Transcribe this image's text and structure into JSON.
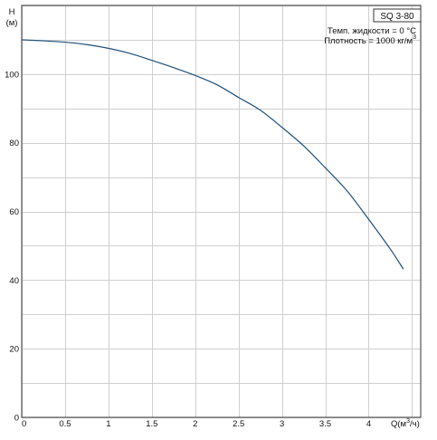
{
  "chart_data": {
    "type": "line",
    "model_label": "SQ 3-80",
    "y_axis_label": {
      "line1": "H",
      "line2": "(м)"
    },
    "x_axis_label": {
      "prefix": "Q(м",
      "sup": "3",
      "suffix": "/ч)"
    },
    "conditions": [
      {
        "text": "Темп. жидкости = 0 °C",
        "sup": ""
      },
      {
        "text": "Плотность = 1000 кг/м",
        "sup": "3"
      }
    ],
    "xlim": [
      0,
      4.6
    ],
    "ylim": [
      0,
      120
    ],
    "x_ticks": [
      0,
      0.5,
      1,
      1.5,
      2,
      2.5,
      3,
      3.5,
      4
    ],
    "x_tick_labels": [
      "0",
      "0.5",
      "1",
      "1.5",
      "2",
      "2.5",
      "3",
      "3.5",
      "4"
    ],
    "y_ticks": [
      0,
      20,
      40,
      60,
      80,
      100
    ],
    "y_tick_labels": [
      "0",
      "20",
      "40",
      "60",
      "80",
      "100"
    ],
    "grid": true,
    "line_color": "#1f4f7a",
    "series": [
      {
        "x": [
          0,
          0.25,
          0.5,
          0.75,
          1,
          1.25,
          1.5,
          1.75,
          2,
          2.25,
          2.5,
          2.75,
          3,
          3.25,
          3.5,
          3.75,
          4,
          4.25,
          4.4
        ],
        "y": [
          110,
          109.7,
          109.3,
          108.6,
          107.5,
          106,
          104,
          101.9,
          99.6,
          96.9,
          93.2,
          89.5,
          84.5,
          79.1,
          72.7,
          66,
          57.7,
          49,
          43.2
        ]
      }
    ]
  }
}
